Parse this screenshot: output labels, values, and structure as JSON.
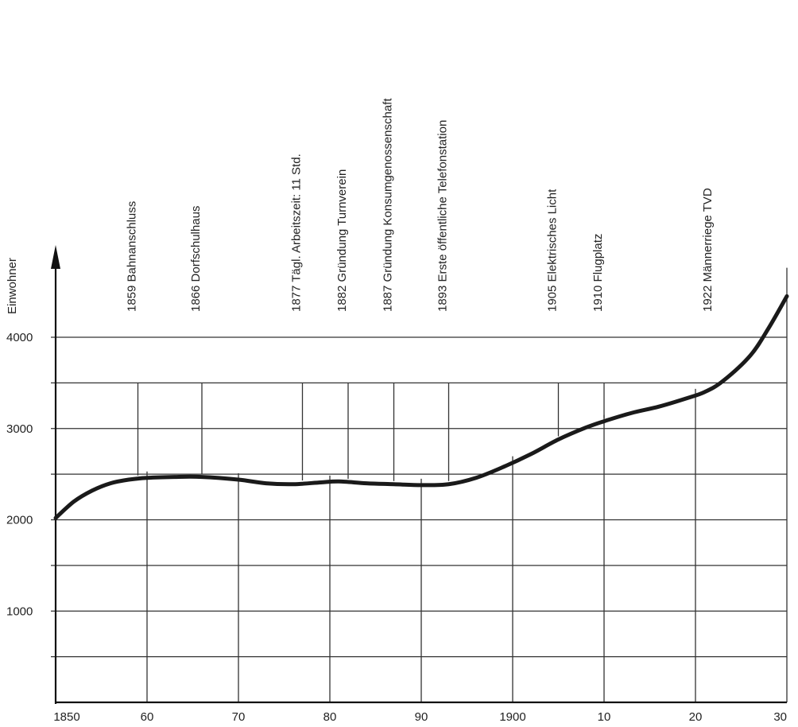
{
  "chart_data": {
    "type": "line",
    "ylabel": "Einwohner",
    "xlabel": "",
    "xlim": [
      1850,
      1930
    ],
    "ylim": [
      0,
      4500
    ],
    "x_ticks": [
      {
        "value": 1850,
        "label": "1850"
      },
      {
        "value": 1860,
        "label": "60"
      },
      {
        "value": 1870,
        "label": "70"
      },
      {
        "value": 1880,
        "label": "80"
      },
      {
        "value": 1890,
        "label": "90"
      },
      {
        "value": 1900,
        "label": "1900"
      },
      {
        "value": 1910,
        "label": "10"
      },
      {
        "value": 1920,
        "label": "20"
      },
      {
        "value": 1930,
        "label": "30"
      }
    ],
    "y_ticks": [
      {
        "value": 1000,
        "label": "1000"
      },
      {
        "value": 2000,
        "label": "2000"
      },
      {
        "value": 3000,
        "label": "3000"
      },
      {
        "value": 4000,
        "label": "4000"
      }
    ],
    "y_grid": [
      500,
      1000,
      1500,
      2000,
      2500,
      3000,
      3500,
      4000
    ],
    "grid": true,
    "series": [
      {
        "x": [
          1850,
          1852,
          1854,
          1856,
          1858,
          1860,
          1863,
          1866,
          1870,
          1873,
          1876,
          1879,
          1881,
          1884,
          1887,
          1890,
          1893,
          1896,
          1899,
          1902,
          1905,
          1908,
          1910,
          1913,
          1916,
          1919,
          1921,
          1923,
          1926,
          1928,
          1930
        ],
        "y": [
          2020,
          2200,
          2320,
          2400,
          2440,
          2460,
          2470,
          2470,
          2440,
          2400,
          2390,
          2410,
          2420,
          2400,
          2390,
          2380,
          2390,
          2460,
          2580,
          2720,
          2880,
          3010,
          3080,
          3170,
          3240,
          3330,
          3400,
          3520,
          3800,
          4100,
          4450
        ]
      }
    ],
    "events": [
      {
        "year": 1859,
        "label": "1859  Bahnanschluss"
      },
      {
        "year": 1866,
        "label": "1866  Dorfschulhaus"
      },
      {
        "year": 1877,
        "label": "1877  Tägl. Arbeitszeit: 11 Std."
      },
      {
        "year": 1882,
        "label": "1882  Gründung Turnverein"
      },
      {
        "year": 1887,
        "label": "1887  Gründung Konsumgenossenschaft"
      },
      {
        "year": 1893,
        "label": "1893  Erste öffentliche Telefonstation"
      },
      {
        "year": 1905,
        "label": "1905  Elektrisches Licht"
      },
      {
        "year": 1910,
        "label": "1910  Flugplatz"
      },
      {
        "year": 1922,
        "label": "1922  Männerriege TVD"
      }
    ]
  }
}
